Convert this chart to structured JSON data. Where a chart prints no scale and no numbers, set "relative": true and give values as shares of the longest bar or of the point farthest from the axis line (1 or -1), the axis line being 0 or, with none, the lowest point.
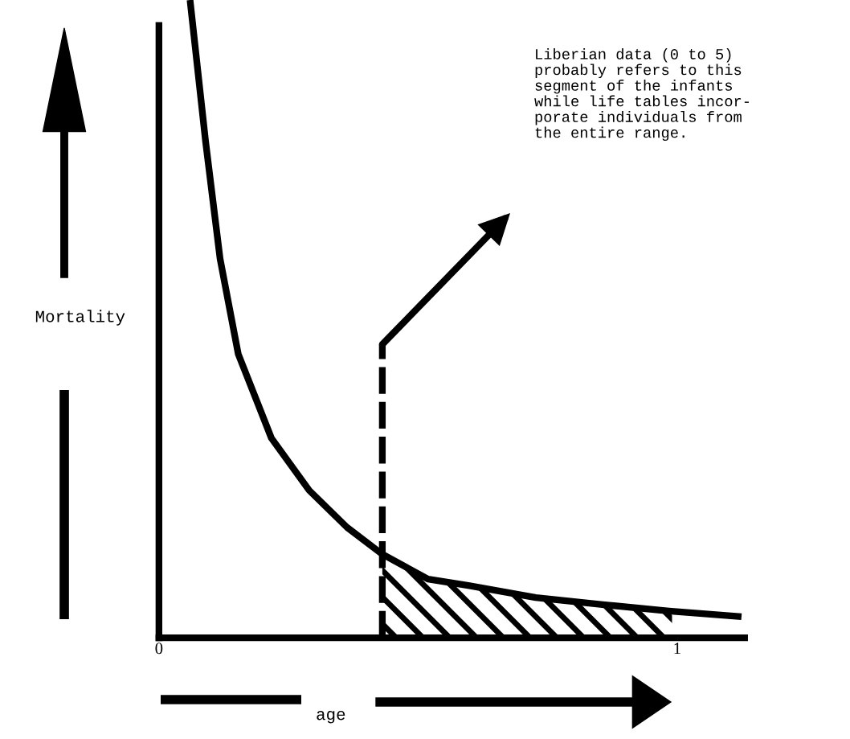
{
  "chart_data": {
    "type": "line",
    "relative": true,
    "xlabel": "age",
    "ylabel": "Mortality",
    "x": [
      0.06,
      0.09,
      0.118,
      0.153,
      0.217,
      0.29,
      0.363,
      0.431,
      0.519,
      0.597,
      0.727,
      0.856,
      0.984,
      1.124
    ],
    "series": [
      {
        "color": "#000000",
        "values": [
          1.0,
          0.778,
          0.594,
          0.445,
          0.313,
          0.231,
          0.173,
          0.131,
          0.092,
          0.082,
          0.063,
          0.052,
          0.042,
          0.033
        ]
      },
      {
        "type": "area",
        "color": "#000000",
        "x": [
          0.431,
          0.519,
          0.597,
          0.727,
          0.856,
          0.99
        ],
        "values": [
          0.131,
          0.092,
          0.082,
          0.063,
          0.052,
          0.042
        ]
      }
    ],
    "xlim": [
      0,
      1.13
    ],
    "xticks": [
      0,
      1
    ],
    "ref_lines": [
      {
        "axis": "x",
        "value": 0.431,
        "line_style": "dashed",
        "color": "#000000"
      }
    ],
    "annotations": [
      "Liberian data (0 to 5)\nprobably refers to this\nsegment of the infants\nwhile life tables incor-\nporate individuals from\nthe entire range."
    ],
    "grid": false,
    "legend": false,
    "marker": "none",
    "line_style": "solid"
  }
}
